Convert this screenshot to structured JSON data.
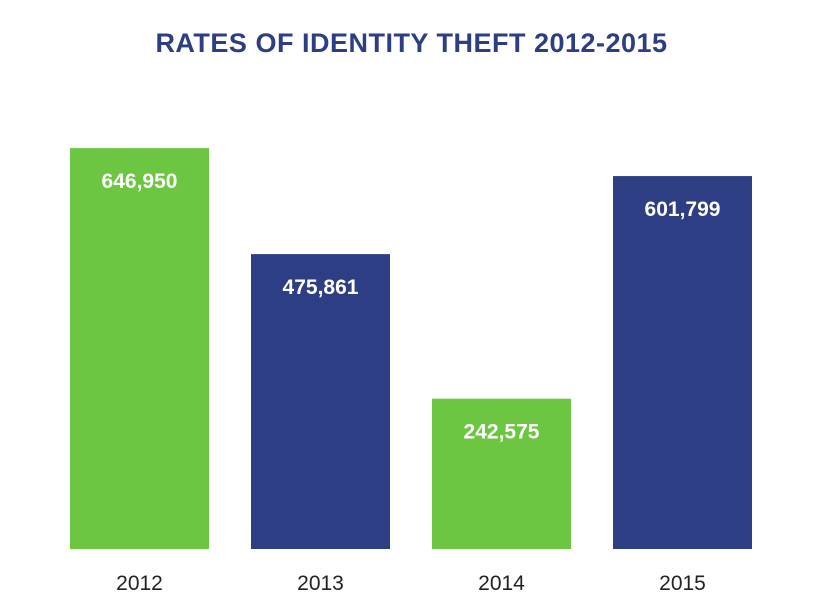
{
  "chart_data": {
    "type": "bar",
    "title": "RATES OF IDENTITY THEFT 2012-2015",
    "categories": [
      "2012",
      "2013",
      "2014",
      "2015"
    ],
    "values": [
      646950,
      475861,
      242575,
      601799
    ],
    "value_labels": [
      "646,950",
      "475,861",
      "242,575",
      "601,799"
    ],
    "bar_colors": [
      "#6cc641",
      "#2d3e84",
      "#6cc641",
      "#2d3e84"
    ],
    "ylim": [
      0,
      660000
    ],
    "grid": false,
    "legend": "none"
  },
  "colors": {
    "title": "#2d3e84",
    "green": "#6cc641",
    "navy": "#2d3e84",
    "value_text": "#ffffff",
    "tick_text": "#222222"
  }
}
